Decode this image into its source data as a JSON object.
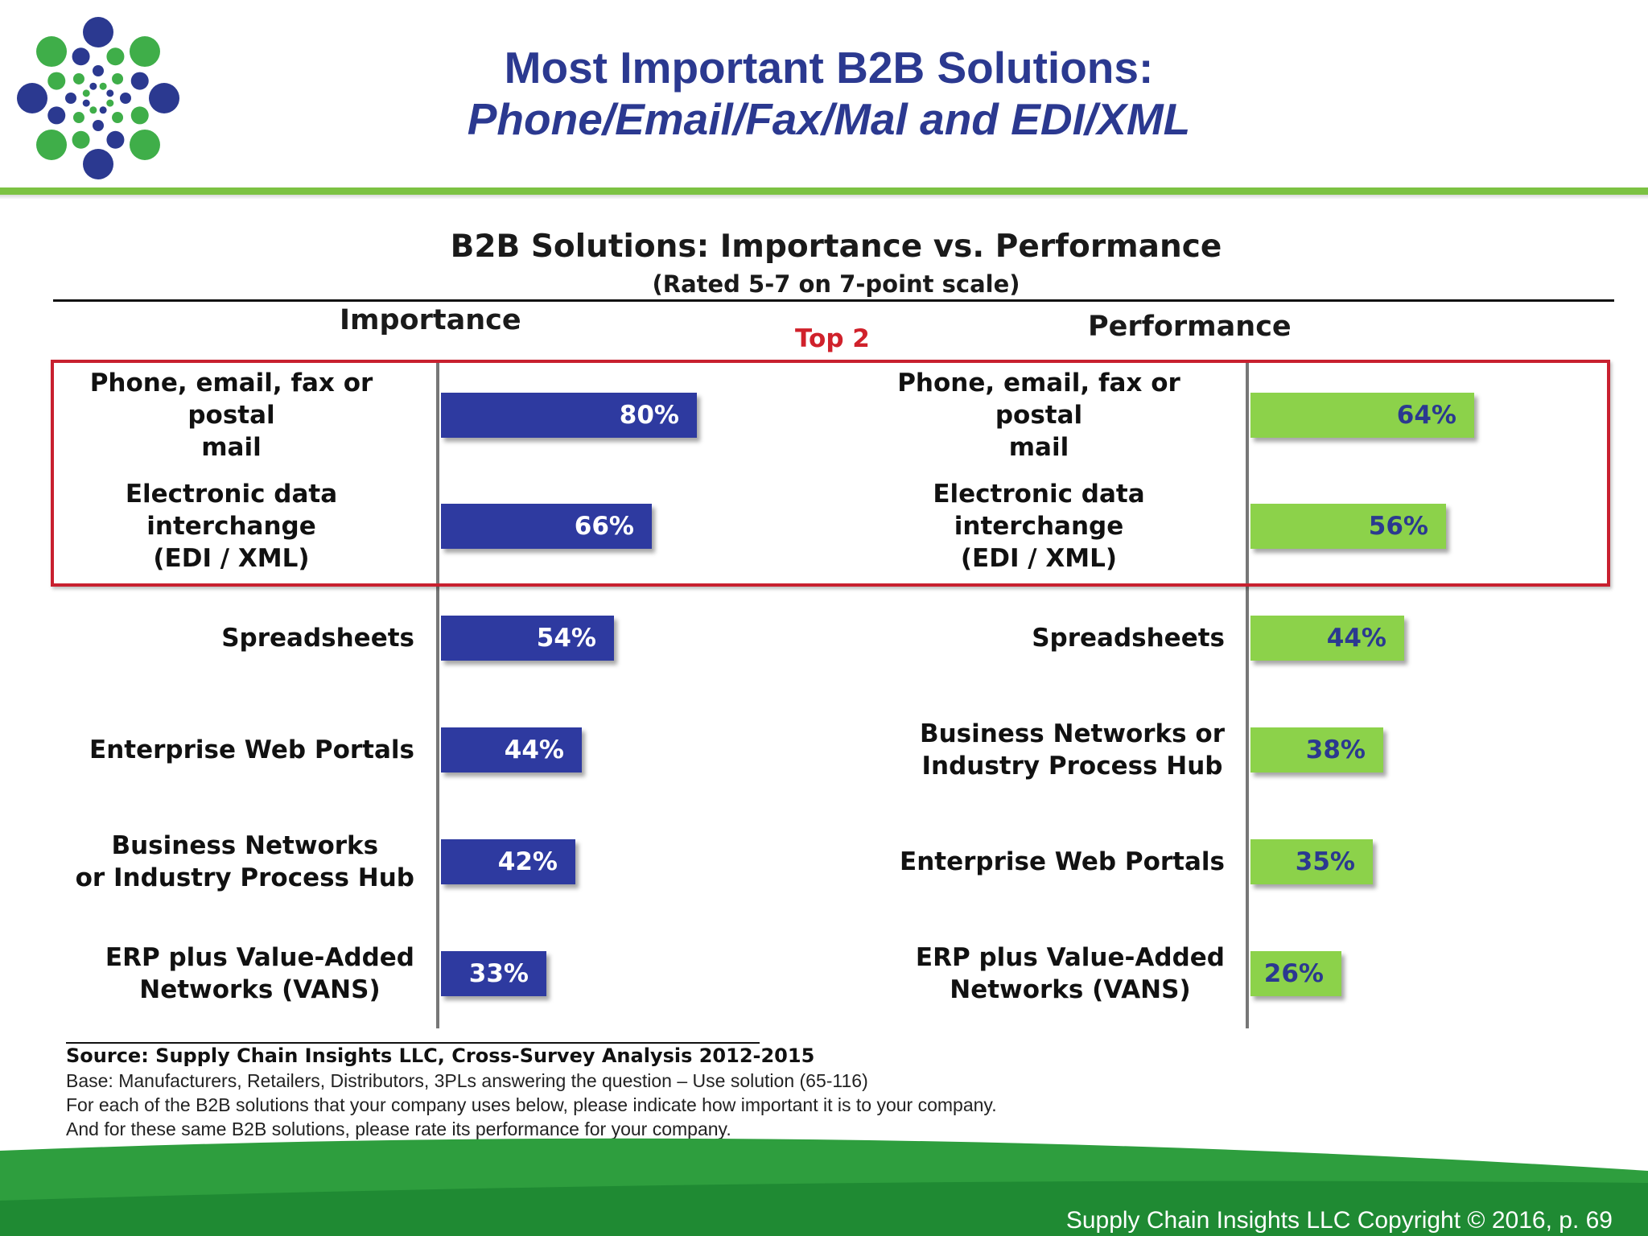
{
  "header": {
    "title_line1": "Most Important B2B Solutions:",
    "title_line2": "Phone/Email/Fax/Mal and EDI/XML"
  },
  "chart_data": {
    "type": "bar",
    "orientation": "horizontal",
    "title": "B2B Solutions:  Importance vs. Performance",
    "subtitle": "(Rated 5-7 on 7-point scale)",
    "highlight_label": "Top 2",
    "panels": [
      {
        "name": "Importance",
        "color": "#2e3aa0",
        "categories": [
          "Phone, email, fax or postal mail",
          "Electronic data interchange (EDI / XML)",
          "Spreadsheets",
          "Enterprise Web Portals",
          "Business Networks or Industry Process Hub",
          "ERP plus Value-Added Networks (VANS)"
        ],
        "label_lines": [
          [
            "Phone, email, fax or postal",
            "mail"
          ],
          [
            "Electronic data interchange",
            "(EDI / XML)"
          ],
          [
            "Spreadsheets"
          ],
          [
            "Enterprise Web Portals"
          ],
          [
            "Business Networks",
            "or Industry Process Hub"
          ],
          [
            "ERP plus Value-Added",
            "Networks (VANS)"
          ]
        ],
        "values": [
          80,
          66,
          54,
          44,
          42,
          33
        ],
        "value_labels": [
          "80%",
          "66%",
          "54%",
          "44%",
          "42%",
          "33%"
        ]
      },
      {
        "name": "Performance",
        "color": "#8cd24a",
        "categories": [
          "Phone, email, fax or postal mail",
          "Electronic data interchange (EDI / XML)",
          "Spreadsheets",
          "Business Networks or Industry Process Hub",
          "Enterprise Web Portals",
          "ERP plus Value-Added Networks (VANS)"
        ],
        "label_lines": [
          [
            "Phone, email, fax or postal",
            "mail"
          ],
          [
            "Electronic data interchange",
            "(EDI / XML)"
          ],
          [
            "Spreadsheets"
          ],
          [
            "Business Networks or",
            "Industry Process Hub"
          ],
          [
            "Enterprise Web Portals"
          ],
          [
            "ERP plus Value-Added",
            "Networks (VANS)"
          ]
        ],
        "values": [
          64,
          56,
          44,
          38,
          35,
          26
        ],
        "value_labels": [
          "64%",
          "56%",
          "44%",
          "38%",
          "35%",
          "26%"
        ]
      }
    ],
    "highlighted_rows": 2
  },
  "footnotes": {
    "source": "Source:  Supply Chain Insights LLC, Cross-Survey Analysis 2012-2015",
    "lines": [
      "Base:  Manufacturers,  Retailers, Distributors, 3PLs answering the question – Use solution (65-116)",
      "For each of the B2B solutions that your company uses below, please indicate how important it is to your company.",
      "And for these same B2B solutions, please rate its performance for your company."
    ]
  },
  "footer": {
    "copyright": "Supply Chain Insights LLC Copyright © 2016, p. 69"
  },
  "colors": {
    "title": "#2b3990",
    "accent_green": "#7cc242",
    "highlight_red": "#c8202f"
  }
}
